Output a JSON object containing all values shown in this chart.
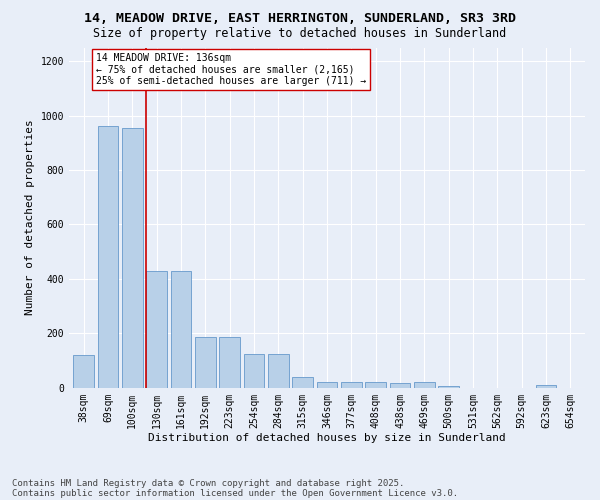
{
  "title": "14, MEADOW DRIVE, EAST HERRINGTON, SUNDERLAND, SR3 3RD",
  "subtitle": "Size of property relative to detached houses in Sunderland",
  "xlabel": "Distribution of detached houses by size in Sunderland",
  "ylabel": "Number of detached properties",
  "categories": [
    "38sqm",
    "69sqm",
    "100sqm",
    "130sqm",
    "161sqm",
    "192sqm",
    "223sqm",
    "254sqm",
    "284sqm",
    "315sqm",
    "346sqm",
    "377sqm",
    "408sqm",
    "438sqm",
    "469sqm",
    "500sqm",
    "531sqm",
    "562sqm",
    "592sqm",
    "623sqm",
    "654sqm"
  ],
  "values": [
    120,
    960,
    955,
    430,
    430,
    185,
    185,
    125,
    125,
    40,
    20,
    20,
    20,
    15,
    20,
    5,
    0,
    0,
    0,
    8,
    0
  ],
  "bar_color": "#b8d0e8",
  "bar_edge_color": "#6699cc",
  "bg_color": "#e8eef8",
  "grid_color": "#ffffff",
  "vline_color": "#cc0000",
  "annotation_text": "14 MEADOW DRIVE: 136sqm\n← 75% of detached houses are smaller (2,165)\n25% of semi-detached houses are larger (711) →",
  "annotation_box_facecolor": "#ffffff",
  "annotation_box_edgecolor": "#cc0000",
  "footer_line1": "Contains HM Land Registry data © Crown copyright and database right 2025.",
  "footer_line2": "Contains public sector information licensed under the Open Government Licence v3.0.",
  "ylim": [
    0,
    1250
  ],
  "yticks": [
    0,
    200,
    400,
    600,
    800,
    1000,
    1200
  ],
  "title_fontsize": 9.5,
  "subtitle_fontsize": 8.5,
  "xlabel_fontsize": 8,
  "ylabel_fontsize": 8,
  "tick_fontsize": 7,
  "annotation_fontsize": 7,
  "footer_fontsize": 6.5,
  "vline_bar_index": 3
}
